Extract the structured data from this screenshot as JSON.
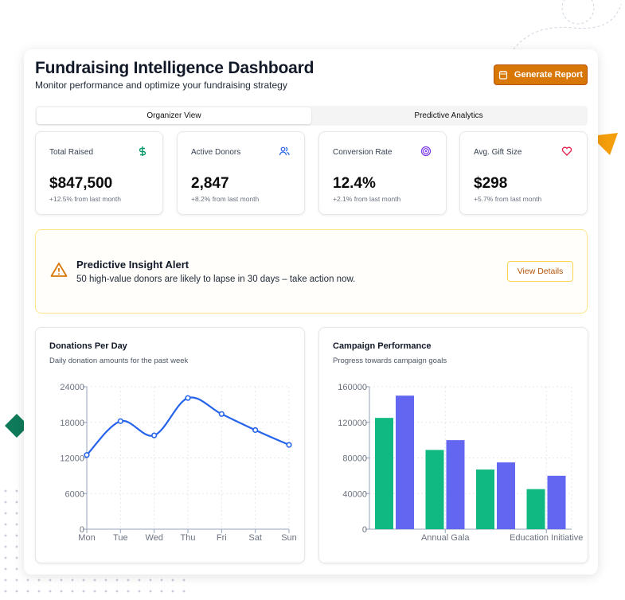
{
  "header": {
    "title": "Fundraising Intelligence Dashboard",
    "subtitle": "Monitor performance and optimize your fundraising strategy",
    "generate_label": "Generate Report",
    "generate_icon": "calendar-icon"
  },
  "tabs": [
    {
      "label": "Organizer View",
      "active": true
    },
    {
      "label": "Predictive Analytics",
      "active": false
    }
  ],
  "kpis": [
    {
      "label": "Total Raised",
      "value": "$847,500",
      "change": "+12.5% from last month",
      "icon": "dollar-icon",
      "color": "#059669"
    },
    {
      "label": "Active Donors",
      "value": "2,847",
      "change": "+8.2% from last month",
      "icon": "users-icon",
      "color": "#2563eb"
    },
    {
      "label": "Conversion Rate",
      "value": "12.4%",
      "change": "+2.1% from last month",
      "icon": "target-icon",
      "color": "#7c3aed"
    },
    {
      "label": "Avg. Gift Size",
      "value": "$298",
      "change": "+5.7% from last month",
      "icon": "heart-icon",
      "color": "#e11d48"
    }
  ],
  "alert": {
    "title": "Predictive Insight Alert",
    "message": "50 high-value donors are likely to lapse in 30 days – take action now.",
    "button": "View Details",
    "icon": "warning-icon",
    "color": "#d97706"
  },
  "charts": {
    "donations": {
      "title": "Donations Per Day",
      "subtitle": "Daily donation amounts for the past week"
    },
    "campaign": {
      "title": "Campaign Performance",
      "subtitle": "Progress towards campaign goals"
    }
  },
  "chart_data": [
    {
      "type": "line",
      "categories": [
        "Mon",
        "Tue",
        "Wed",
        "Thu",
        "Fri",
        "Sat",
        "Sun"
      ],
      "values": [
        12500,
        18200,
        15800,
        22100,
        19400,
        16700,
        14200
      ],
      "ylim": [
        0,
        24000
      ],
      "yticks": [
        0,
        6000,
        12000,
        18000,
        24000
      ],
      "grid": true,
      "color": "#2563eb"
    },
    {
      "type": "bar",
      "categories": [
        "",
        "Annual Gala",
        "",
        "Education Initiative"
      ],
      "series": [
        {
          "values": [
            125000,
            89000,
            67000,
            45000
          ],
          "color": "#10b981"
        },
        {
          "values": [
            150000,
            100000,
            75000,
            60000
          ],
          "color": "#6366f1"
        }
      ],
      "ylim": [
        0,
        160000
      ],
      "yticks": [
        0,
        40000,
        80000,
        120000,
        160000
      ],
      "grid": true
    }
  ]
}
